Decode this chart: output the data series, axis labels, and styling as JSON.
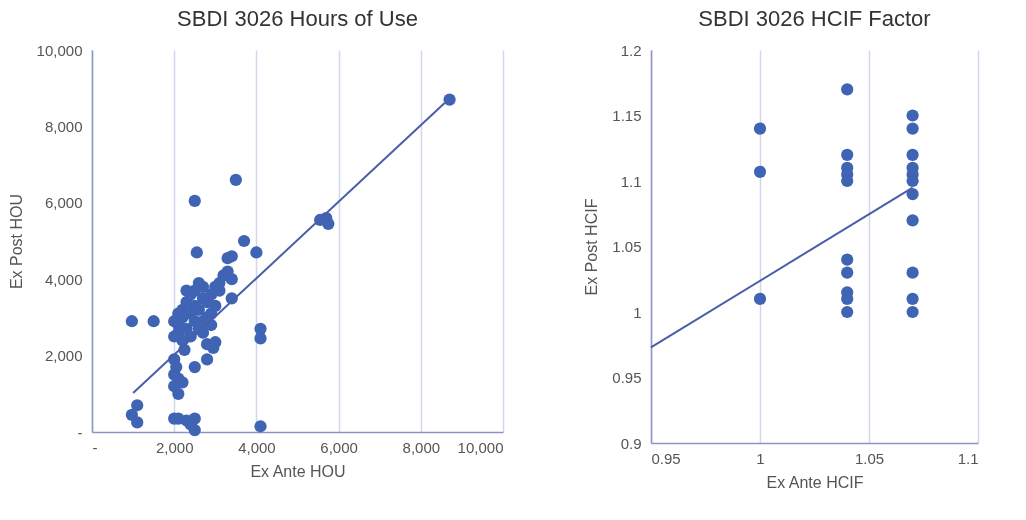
{
  "chart_data": [
    {
      "type": "scatter",
      "title": "SBDI 3026 Hours of Use",
      "xlabel": "Ex Ante HOU",
      "ylabel": "Ex Post HOU",
      "xlim": [
        0,
        10000
      ],
      "ylim": [
        0,
        10000
      ],
      "xticks": [
        {
          "value": 0,
          "label": "-"
        },
        {
          "value": 2000,
          "label": "2,000"
        },
        {
          "value": 4000,
          "label": "4,000"
        },
        {
          "value": 6000,
          "label": "6,000"
        },
        {
          "value": 8000,
          "label": "8,000"
        },
        {
          "value": 10000,
          "label": "10,000"
        }
      ],
      "yticks": [
        {
          "value": 0,
          "label": "-"
        },
        {
          "value": 2000,
          "label": "2,000"
        },
        {
          "value": 4000,
          "label": "4,000"
        },
        {
          "value": 6000,
          "label": "6,000"
        },
        {
          "value": 8000,
          "label": "8,000"
        },
        {
          "value": 10000,
          "label": "10,000"
        }
      ],
      "grid": "x",
      "series": [
        {
          "marker": "circle",
          "color": "#4064b4",
          "x": [
            8700,
            3500,
            2500,
            5550,
            5700,
            5750,
            3700,
            4000,
            2550,
            3400,
            3300,
            970,
            1500,
            4100,
            4100,
            4100,
            3400,
            970,
            1100,
            1100,
            2000,
            2100,
            2300,
            2500,
            2500,
            2400,
            2000,
            2050,
            2000,
            2100,
            2000,
            2100,
            2200,
            2500,
            2800,
            2950,
            3000,
            2800,
            2250,
            2000,
            2100,
            2200,
            2300,
            2100,
            2400,
            2500,
            2600,
            2700,
            2800,
            2900,
            3000,
            3100,
            2300,
            2400,
            2500,
            2600,
            2700,
            2800,
            2900,
            3000,
            3200,
            3300,
            3400,
            3100,
            2200,
            2500,
            2700,
            2600,
            2200,
            2400,
            2700,
            2900,
            2100,
            2000,
            2300
          ],
          "values": [
            8700,
            6600,
            6050,
            5550,
            5600,
            5450,
            5000,
            4700,
            4700,
            4600,
            4550,
            2900,
            2900,
            2700,
            2450,
            150,
            3500,
            450,
            700,
            250,
            350,
            350,
            300,
            350,
            50,
            200,
            1900,
            1700,
            1500,
            1400,
            1200,
            1000,
            1300,
            1700,
            1900,
            2200,
            2350,
            2300,
            2150,
            2900,
            2800,
            3000,
            2700,
            2600,
            3100,
            3300,
            3200,
            3500,
            3400,
            3600,
            3800,
            3700,
            3400,
            3600,
            2900,
            2700,
            2900,
            3000,
            3100,
            3300,
            4100,
            4200,
            4000,
            3900,
            3200,
            3700,
            3800,
            3900,
            2400,
            2500,
            2600,
            2800,
            3100,
            2500,
            3700
          ]
        },
        {
          "type": "line",
          "marker": "none",
          "color": "#4a5ea8",
          "x": [
            1000,
            8580
          ],
          "values": [
            1020,
            8610
          ]
        }
      ]
    },
    {
      "type": "scatter",
      "title": "SBDI 3026 HCIF Factor",
      "xlabel": "Ex Ante HCIF",
      "ylabel": "Ex Post HCIF",
      "xlim": [
        0.95,
        1.1
      ],
      "ylim": [
        0.9,
        1.2
      ],
      "xticks": [
        0.95,
        1,
        1.05,
        1.1
      ],
      "yticks": [
        0.9,
        0.95,
        1,
        1.05,
        1.1,
        1.15,
        1.2
      ],
      "grid": "x",
      "series": [
        {
          "marker": "circle",
          "color": "#4064b4",
          "x": [
            1,
            1,
            1,
            1.04,
            1.04,
            1.04,
            1.04,
            1.04,
            1.04,
            1.04,
            1.04,
            1.04,
            1.04,
            1.07,
            1.07,
            1.07,
            1.07,
            1.07,
            1.07,
            1.07,
            1.07,
            1.07,
            1.07,
            1.07
          ],
          "values": [
            1.14,
            1.107,
            1.01,
            1.17,
            1.12,
            1.11,
            1.105,
            1.1,
            1.04,
            1.03,
            1.015,
            1.01,
            1,
            1.15,
            1.14,
            1.12,
            1.11,
            1.105,
            1.1,
            1.09,
            1.07,
            1.03,
            1.01,
            1
          ]
        },
        {
          "type": "line",
          "marker": "none",
          "color": "#4a5ea8",
          "x": [
            0.95,
            1.07
          ],
          "values": [
            0.973,
            1.095
          ]
        }
      ]
    }
  ]
}
